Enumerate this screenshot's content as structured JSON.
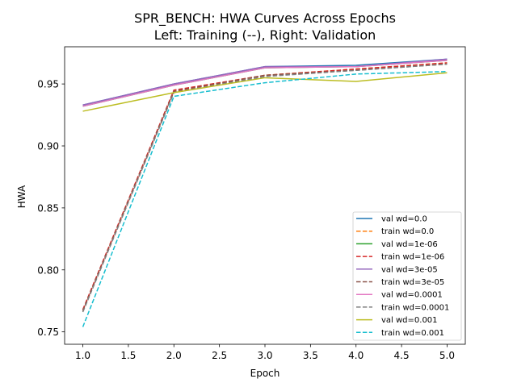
{
  "chart_data": {
    "type": "line",
    "title": "SPR_BENCH: HWA Curves Across Epochs",
    "subtitle": "Left: Training (--), Right: Validation",
    "xlabel": "Epoch",
    "ylabel": "HWA",
    "xlim": [
      0.8,
      5.2
    ],
    "ylim": [
      0.74,
      0.98
    ],
    "xticks": [
      "1.0",
      "1.5",
      "2.0",
      "2.5",
      "3.0",
      "3.5",
      "4.0",
      "4.5",
      "5.0"
    ],
    "yticks": [
      "0.75",
      "0.80",
      "0.85",
      "0.90",
      "0.95"
    ],
    "grid": false,
    "legend_position": "lower-right",
    "x": [
      1,
      2,
      3,
      4,
      5
    ],
    "series": [
      {
        "name": "val wd=0.0",
        "style": "solid",
        "color": "#1f77b4",
        "values": [
          0.933,
          0.95,
          0.964,
          0.965,
          0.97
        ]
      },
      {
        "name": "train wd=0.0",
        "style": "dashed",
        "color": "#ff7f0e",
        "values": [
          0.767,
          0.944,
          0.957,
          0.962,
          0.967
        ]
      },
      {
        "name": "val wd=1e-06",
        "style": "solid",
        "color": "#2ca02c",
        "values": [
          0.932,
          0.949,
          0.963,
          0.964,
          0.969
        ]
      },
      {
        "name": "train wd=1e-06",
        "style": "dashed",
        "color": "#d62728",
        "values": [
          0.768,
          0.945,
          0.957,
          0.962,
          0.967
        ]
      },
      {
        "name": "val wd=3e-05",
        "style": "solid",
        "color": "#9467bd",
        "values": [
          0.933,
          0.95,
          0.964,
          0.964,
          0.97
        ]
      },
      {
        "name": "train wd=3e-05",
        "style": "dashed",
        "color": "#8c564b",
        "values": [
          0.767,
          0.944,
          0.957,
          0.961,
          0.966
        ]
      },
      {
        "name": "val wd=0.0001",
        "style": "solid",
        "color": "#e377c2",
        "values": [
          0.932,
          0.949,
          0.963,
          0.964,
          0.969
        ]
      },
      {
        "name": "train wd=0.0001",
        "style": "dashed",
        "color": "#7f7f7f",
        "values": [
          0.766,
          0.943,
          0.956,
          0.961,
          0.966
        ]
      },
      {
        "name": "val wd=0.001",
        "style": "solid",
        "color": "#bcbd22",
        "values": [
          0.928,
          0.943,
          0.955,
          0.952,
          0.959
        ]
      },
      {
        "name": "train wd=0.001",
        "style": "dashed",
        "color": "#17becf",
        "values": [
          0.754,
          0.94,
          0.951,
          0.958,
          0.96
        ]
      }
    ]
  }
}
